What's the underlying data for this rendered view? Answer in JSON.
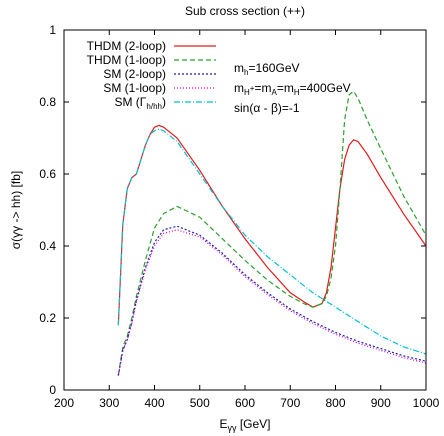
{
  "chart_data": {
    "type": "line",
    "title": "Sub cross section (++)",
    "xlabel_main": "E",
    "xlabel_sub": "γγ",
    "xlabel_unit": " [GeV]",
    "ylabel": "σ(γγ -> hh)  [fb]",
    "xlim": [
      200,
      1000
    ],
    "ylim": [
      0,
      1
    ],
    "xticks": [
      200,
      300,
      400,
      500,
      600,
      700,
      800,
      900,
      1000
    ],
    "yticks": [
      0,
      0.2,
      0.4,
      0.6,
      0.8,
      1
    ],
    "ytick_labels": [
      "0",
      "0.2",
      "0.4",
      "0.6",
      "0.8",
      "1"
    ],
    "grid": false,
    "legend_position": "top-left",
    "annotations": [
      {
        "parts": [
          [
            "m",
            ""
          ],
          [
            "h",
            "sub"
          ],
          [
            "=160GeV",
            ""
          ]
        ]
      },
      {
        "parts": [
          [
            "m",
            ""
          ],
          [
            "H",
            "sub"
          ],
          [
            "+",
            "subsup"
          ],
          [
            "=m",
            ""
          ],
          [
            "A",
            "sub"
          ],
          [
            "=m",
            ""
          ],
          [
            "H",
            "sub"
          ],
          [
            "=400GeV",
            ""
          ]
        ]
      },
      {
        "parts": [
          [
            "sin(α - β)=-1",
            ""
          ]
        ]
      }
    ],
    "series": [
      {
        "name": "THDM (2-loop)",
        "color": "#e41a1c",
        "dash": "",
        "x": [
          320,
          330,
          340,
          350,
          360,
          370,
          380,
          390,
          400,
          410,
          420,
          450,
          500,
          550,
          600,
          650,
          700,
          730,
          750,
          770,
          780,
          790,
          800,
          810,
          820,
          830,
          840,
          850,
          870,
          900,
          950,
          1000
        ],
        "y": [
          0.18,
          0.46,
          0.56,
          0.59,
          0.6,
          0.64,
          0.68,
          0.71,
          0.73,
          0.735,
          0.73,
          0.7,
          0.61,
          0.51,
          0.42,
          0.34,
          0.27,
          0.245,
          0.23,
          0.24,
          0.27,
          0.34,
          0.45,
          0.56,
          0.64,
          0.68,
          0.695,
          0.69,
          0.655,
          0.59,
          0.49,
          0.4
        ]
      },
      {
        "name": "THDM (1-loop)",
        "color": "#2ca02c",
        "dash": "5,3",
        "x": [
          320,
          330,
          340,
          350,
          360,
          380,
          400,
          420,
          450,
          500,
          550,
          600,
          650,
          700,
          730,
          750,
          770,
          780,
          790,
          800,
          810,
          820,
          830,
          840,
          850,
          870,
          900,
          950,
          1000
        ],
        "y": [
          0.04,
          0.12,
          0.15,
          0.2,
          0.26,
          0.36,
          0.45,
          0.49,
          0.51,
          0.48,
          0.42,
          0.36,
          0.305,
          0.26,
          0.24,
          0.23,
          0.24,
          0.26,
          0.31,
          0.4,
          0.56,
          0.75,
          0.82,
          0.83,
          0.81,
          0.75,
          0.67,
          0.54,
          0.43
        ]
      },
      {
        "name": "SM (2-loop)",
        "color": "#1f1f9f",
        "dash": "2,2",
        "x": [
          320,
          330,
          340,
          350,
          360,
          380,
          400,
          420,
          450,
          500,
          550,
          600,
          650,
          700,
          750,
          800,
          850,
          900,
          950,
          1000
        ],
        "y": [
          0.04,
          0.11,
          0.14,
          0.19,
          0.25,
          0.34,
          0.41,
          0.445,
          0.455,
          0.43,
          0.38,
          0.32,
          0.27,
          0.225,
          0.19,
          0.16,
          0.135,
          0.115,
          0.095,
          0.08
        ]
      },
      {
        "name": "SM (1-loop)",
        "color": "#d000d0",
        "dash": "1,2",
        "x": [
          320,
          330,
          340,
          350,
          360,
          380,
          400,
          420,
          450,
          500,
          550,
          600,
          650,
          700,
          750,
          800,
          850,
          900,
          950,
          1000
        ],
        "y": [
          0.04,
          0.11,
          0.14,
          0.185,
          0.245,
          0.335,
          0.4,
          0.435,
          0.445,
          0.425,
          0.375,
          0.315,
          0.265,
          0.22,
          0.185,
          0.155,
          0.13,
          0.11,
          0.09,
          0.075
        ]
      },
      {
        "name": "SM (Γ",
        "name_sub": "h/hh",
        "name_end": ")",
        "color": "#00c0d0",
        "dash": "6,2,1,2",
        "x": [
          320,
          330,
          340,
          350,
          360,
          370,
          380,
          390,
          400,
          410,
          420,
          450,
          500,
          550,
          600,
          650,
          700,
          750,
          800,
          850,
          900,
          950,
          1000
        ],
        "y": [
          0.18,
          0.46,
          0.56,
          0.59,
          0.6,
          0.64,
          0.68,
          0.71,
          0.72,
          0.725,
          0.72,
          0.69,
          0.6,
          0.51,
          0.43,
          0.37,
          0.32,
          0.27,
          0.23,
          0.19,
          0.15,
          0.12,
          0.1
        ]
      }
    ]
  }
}
